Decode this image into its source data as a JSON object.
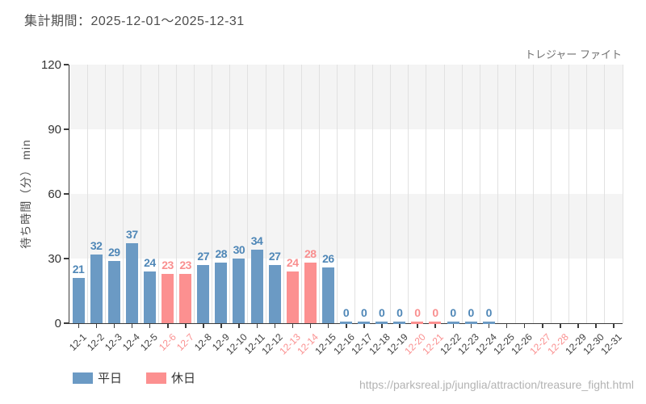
{
  "header": {
    "period_label": "集計期間：2025-12-01～2025-12-31",
    "attraction_label": "トレジャー ファイト"
  },
  "chart_data": {
    "type": "bar",
    "title": "集計期間：2025-12-01～2025-12-31",
    "xlabel": "",
    "ylabel": "待ち時間（分） min",
    "ylim": [
      0,
      120
    ],
    "yticks": [
      0,
      30,
      60,
      90,
      120
    ],
    "grid": "horizontal-bands-and-vertical-lines",
    "legend_position": "bottom-left",
    "categories": [
      "12-1",
      "12-2",
      "12-3",
      "12-4",
      "12-5",
      "12-6",
      "12-7",
      "12-8",
      "12-9",
      "12-10",
      "12-11",
      "12-12",
      "12-13",
      "12-14",
      "12-15",
      "12-16",
      "12-17",
      "12-18",
      "12-19",
      "12-20",
      "12-21",
      "12-22",
      "12-23",
      "12-24",
      "12-25",
      "12-26",
      "12-27",
      "12-28",
      "12-29",
      "12-30",
      "12-31"
    ],
    "values": [
      21,
      32,
      29,
      37,
      24,
      23,
      23,
      27,
      28,
      30,
      34,
      27,
      24,
      28,
      26,
      0,
      0,
      0,
      0,
      0,
      0,
      0,
      0,
      0,
      null,
      null,
      null,
      null,
      null,
      null,
      null
    ],
    "day_types": [
      "weekday",
      "weekday",
      "weekday",
      "weekday",
      "weekday",
      "holiday",
      "holiday",
      "weekday",
      "weekday",
      "weekday",
      "weekday",
      "weekday",
      "holiday",
      "holiday",
      "weekday",
      "weekday",
      "weekday",
      "weekday",
      "weekday",
      "holiday",
      "holiday",
      "weekday",
      "weekday",
      "weekday",
      "weekday",
      "weekday",
      "holiday",
      "holiday",
      "weekday",
      "weekday",
      "weekday"
    ],
    "colors": {
      "weekday_bar": "#6b9ac4",
      "holiday_bar": "#fc9090",
      "weekday_label": "#4f87b7",
      "holiday_label": "#f98f8f",
      "holiday_tick_label": "#fa9090"
    },
    "legend": [
      {
        "label": "平日",
        "color": "#6b9ac4"
      },
      {
        "label": "休日",
        "color": "#fc9090"
      }
    ]
  },
  "footer": {
    "url": "https://parksreal.jp/junglia/attraction/treasure_fight.html"
  }
}
